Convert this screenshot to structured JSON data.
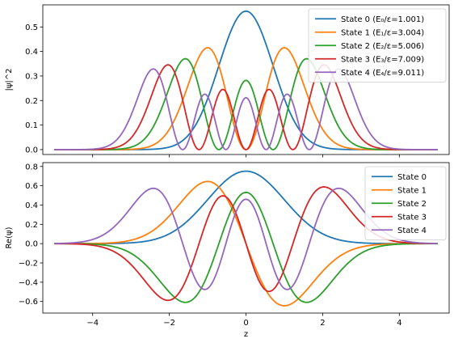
{
  "chart_data": [
    {
      "type": "line",
      "title": "",
      "xlabel": "",
      "ylabel": "|ψ|^2",
      "xlim": [
        -5.3,
        5.3
      ],
      "ylim": [
        -0.02,
        0.59
      ],
      "xticks": [
        -4,
        -2,
        0,
        2,
        4
      ],
      "xtick_labels": [],
      "yticks": [
        0.0,
        0.1,
        0.2,
        0.3,
        0.4,
        0.5
      ],
      "ytick_labels": [
        "0.0",
        "0.1",
        "0.2",
        "0.3",
        "0.4",
        "0.5"
      ],
      "grid": false,
      "legend_position": "upper right",
      "x_range": [
        -5,
        5
      ],
      "series": [
        {
          "name": "State 0 (E₀/ε=1.001)",
          "state": 0,
          "color": "#1f77b4",
          "quantity": "probability_density",
          "peak_values": [
            0.56
          ]
        },
        {
          "name": "State 1 (E₁/ε=3.004)",
          "state": 1,
          "color": "#ff7f0e",
          "quantity": "probability_density",
          "peak_values": [
            0.415,
            0.0,
            0.415
          ]
        },
        {
          "name": "State 2 (E₂/ε=5.006)",
          "state": 2,
          "color": "#2ca02c",
          "quantity": "probability_density",
          "peak_values": [
            0.37,
            0.28,
            0.37
          ]
        },
        {
          "name": "State 3 (E₃/ε=7.009)",
          "state": 3,
          "color": "#d62728",
          "quantity": "probability_density",
          "peak_values": [
            0.345,
            0.245,
            0.245,
            0.345
          ]
        },
        {
          "name": "State 4 (E₄/ε=9.011)",
          "state": 4,
          "color": "#9467bd",
          "quantity": "probability_density",
          "peak_values": [
            0.33,
            0.225,
            0.21,
            0.225,
            0.33
          ]
        }
      ]
    },
    {
      "type": "line",
      "title": "",
      "xlabel": "z",
      "ylabel": "Re(ψ)",
      "xlim": [
        -5.3,
        5.3
      ],
      "ylim": [
        -0.72,
        0.84
      ],
      "xticks": [
        -4,
        -2,
        0,
        2,
        4
      ],
      "xtick_labels": [
        "−4",
        "−2",
        "0",
        "2",
        "4"
      ],
      "yticks": [
        -0.6,
        -0.4,
        -0.2,
        0.0,
        0.2,
        0.4,
        0.6,
        0.8
      ],
      "ytick_labels": [
        "−0.6",
        "−0.4",
        "−0.2",
        "0.0",
        "0.2",
        "0.4",
        "0.6",
        "0.8"
      ],
      "grid": false,
      "legend_position": "upper right",
      "x_range": [
        -5,
        5
      ],
      "series": [
        {
          "name": "State 0",
          "state": 0,
          "color": "#1f77b4",
          "quantity": "real_part",
          "sign": 1
        },
        {
          "name": "State 1",
          "state": 1,
          "color": "#ff7f0e",
          "quantity": "real_part",
          "sign": -1
        },
        {
          "name": "State 2",
          "state": 2,
          "color": "#2ca02c",
          "quantity": "real_part",
          "sign": -1
        },
        {
          "name": "State 3",
          "state": 3,
          "color": "#d62728",
          "quantity": "real_part",
          "sign": 1
        },
        {
          "name": "State 4",
          "state": 4,
          "color": "#9467bd",
          "quantity": "real_part",
          "sign": 1
        }
      ]
    }
  ]
}
